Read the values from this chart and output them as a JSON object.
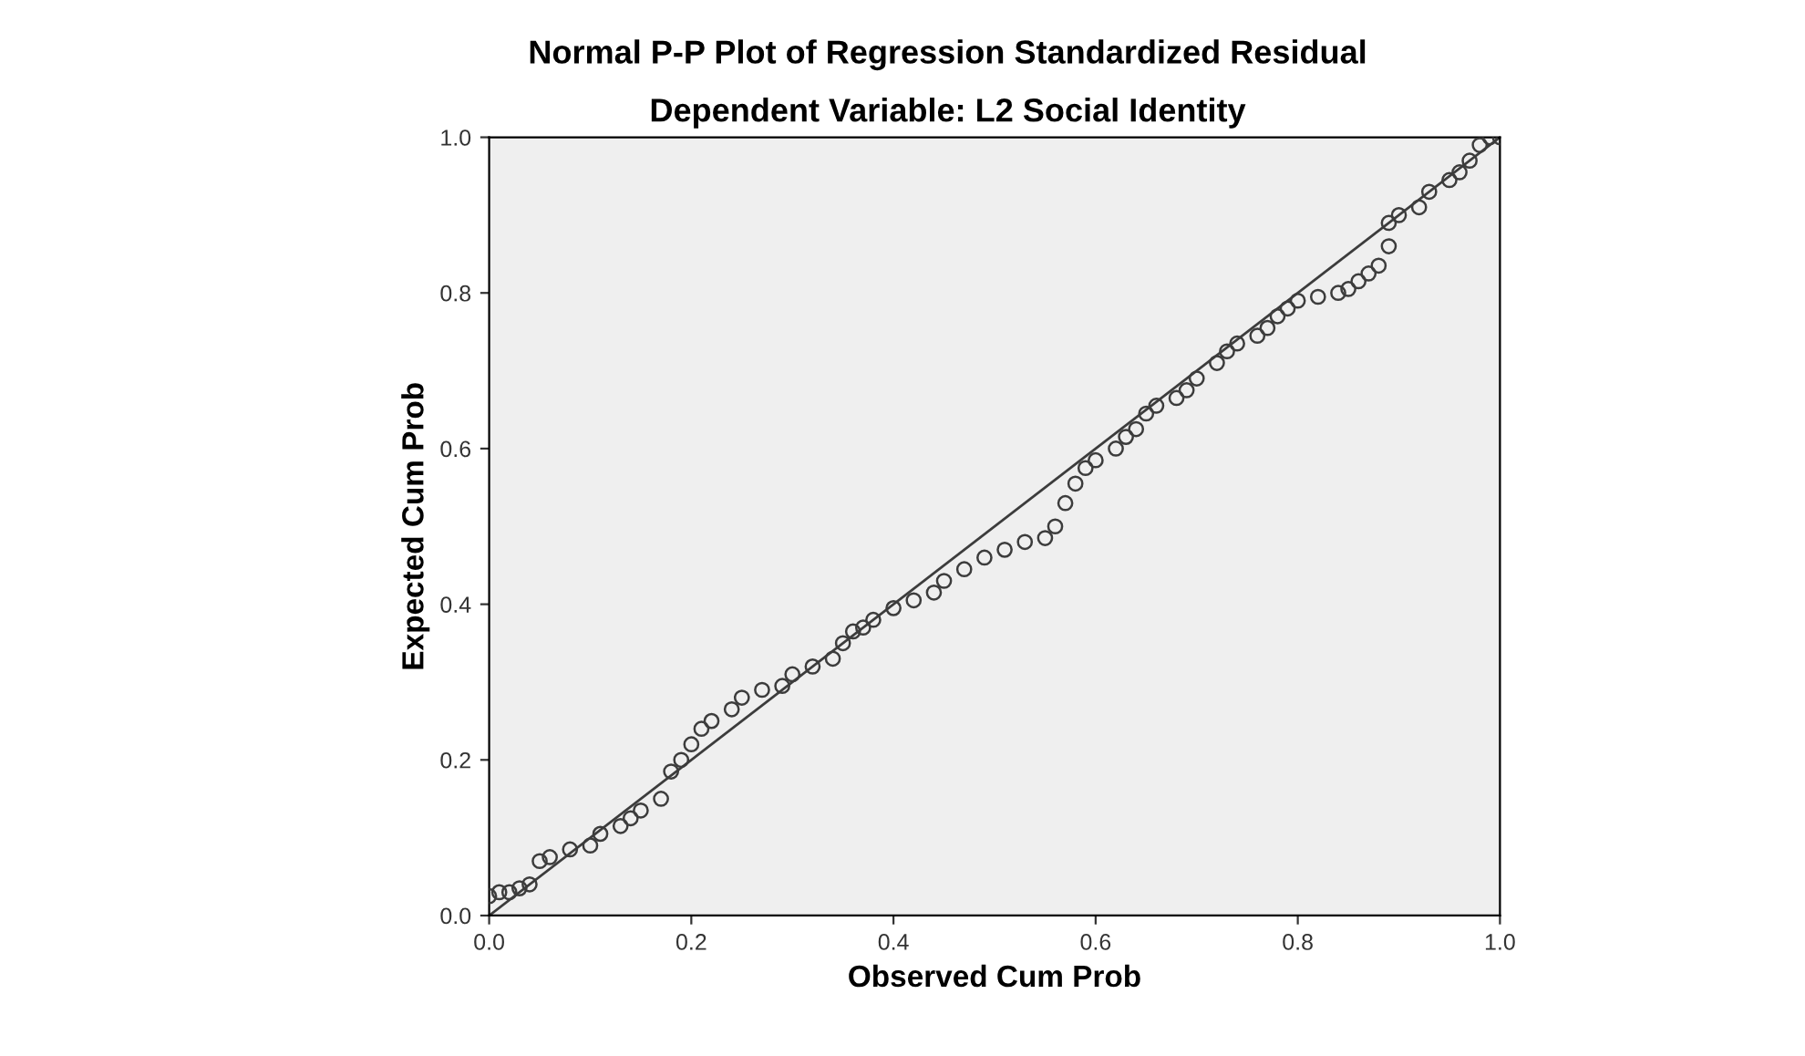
{
  "chart_data": {
    "type": "scatter",
    "title": "Normal P-P Plot of Regression Standardized Residual",
    "subtitle": "Dependent Variable: L2 Social Identity",
    "xlabel": "Observed Cum Prob",
    "ylabel": "Expected Cum Prob",
    "xlim": [
      0,
      1
    ],
    "ylim": [
      0,
      1
    ],
    "xticks": [
      {
        "value": 0,
        "label": "0.0"
      },
      {
        "value": 0.2,
        "label": "0.2"
      },
      {
        "value": 0.4,
        "label": "0.4"
      },
      {
        "value": 0.6,
        "label": "0.6"
      },
      {
        "value": 0.8,
        "label": "0.8"
      },
      {
        "value": 1,
        "label": "1.0"
      }
    ],
    "yticks": [
      {
        "value": 0,
        "label": "0.0"
      },
      {
        "value": 0.2,
        "label": "0.2"
      },
      {
        "value": 0.4,
        "label": "0.4"
      },
      {
        "value": 0.6,
        "label": "0.6"
      },
      {
        "value": 0.8,
        "label": "0.8"
      },
      {
        "value": 1,
        "label": "1.0"
      }
    ],
    "grid": false,
    "legend": false,
    "series": [
      {
        "marker": "circle",
        "color": "#3c3c3c",
        "x": [
          0.0,
          0.01,
          0.02,
          0.03,
          0.04,
          0.05,
          0.06,
          0.08,
          0.1,
          0.11,
          0.13,
          0.14,
          0.15,
          0.17,
          0.18,
          0.19,
          0.2,
          0.21,
          0.22,
          0.24,
          0.25,
          0.27,
          0.29,
          0.3,
          0.32,
          0.34,
          0.35,
          0.36,
          0.37,
          0.38,
          0.4,
          0.42,
          0.44,
          0.45,
          0.47,
          0.49,
          0.51,
          0.53,
          0.55,
          0.56,
          0.57,
          0.58,
          0.59,
          0.6,
          0.62,
          0.63,
          0.64,
          0.65,
          0.66,
          0.68,
          0.69,
          0.7,
          0.72,
          0.73,
          0.74,
          0.76,
          0.77,
          0.78,
          0.79,
          0.8,
          0.82,
          0.84,
          0.85,
          0.86,
          0.87,
          0.88,
          0.89,
          0.89,
          0.9,
          0.92,
          0.93,
          0.95,
          0.96,
          0.97,
          0.98,
          0.99,
          1.0
        ],
        "values": [
          0.025,
          0.03,
          0.03,
          0.035,
          0.04,
          0.07,
          0.075,
          0.085,
          0.09,
          0.105,
          0.115,
          0.125,
          0.135,
          0.15,
          0.185,
          0.2,
          0.22,
          0.24,
          0.25,
          0.265,
          0.28,
          0.29,
          0.295,
          0.31,
          0.32,
          0.33,
          0.35,
          0.365,
          0.37,
          0.38,
          0.395,
          0.405,
          0.415,
          0.43,
          0.445,
          0.46,
          0.47,
          0.48,
          0.485,
          0.5,
          0.53,
          0.555,
          0.575,
          0.585,
          0.6,
          0.615,
          0.625,
          0.645,
          0.655,
          0.665,
          0.675,
          0.69,
          0.71,
          0.725,
          0.735,
          0.745,
          0.755,
          0.77,
          0.78,
          0.79,
          0.795,
          0.8,
          0.805,
          0.815,
          0.825,
          0.835,
          0.86,
          0.89,
          0.9,
          0.91,
          0.93,
          0.945,
          0.955,
          0.97,
          0.99,
          1.0,
          1.0
        ]
      },
      {
        "type": "line",
        "color": "#3c3c3c",
        "x": [
          0,
          1
        ],
        "values": [
          0,
          1
        ]
      }
    ]
  }
}
